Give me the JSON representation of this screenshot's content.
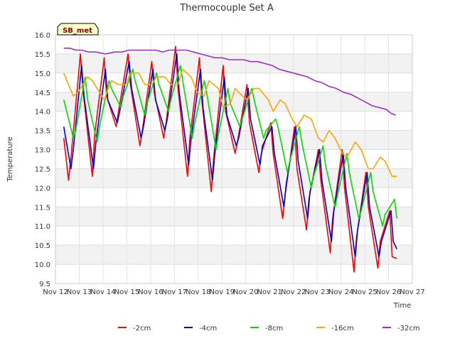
{
  "chart_data": {
    "type": "line",
    "title": "Thermocouple Set A",
    "badge": "SB_met",
    "xlabel": "Time",
    "ylabel": "Temperature",
    "ylim": [
      9.5,
      16.0
    ],
    "yticks": [
      9.5,
      10.0,
      10.5,
      11.0,
      11.5,
      12.0,
      12.5,
      13.0,
      13.5,
      14.0,
      14.5,
      15.0,
      15.5,
      16.0
    ],
    "xlim": [
      12,
      27
    ],
    "xticks": [
      {
        "v": 12,
        "label": "Nov 12"
      },
      {
        "v": 13,
        "label": "Nov 13"
      },
      {
        "v": 14,
        "label": "Nov 14"
      },
      {
        "v": 15,
        "label": "Nov 15"
      },
      {
        "v": 16,
        "label": "Nov 16"
      },
      {
        "v": 17,
        "label": "Nov 17"
      },
      {
        "v": 18,
        "label": "Nov 18"
      },
      {
        "v": 19,
        "label": "Nov 19"
      },
      {
        "v": 20,
        "label": "Nov 20"
      },
      {
        "v": 21,
        "label": "Nov 21"
      },
      {
        "v": 22,
        "label": "Nov 22"
      },
      {
        "v": 23,
        "label": "Nov 23"
      },
      {
        "v": 24,
        "label": "Nov 24"
      },
      {
        "v": 25,
        "label": "Nov 25"
      },
      {
        "v": 26,
        "label": "Nov 26"
      },
      {
        "v": 27,
        "label": "Nov 27"
      }
    ],
    "grid": true,
    "legend": "bottom",
    "series": [
      {
        "name": "-2cm",
        "color": "#ff0000",
        "x": [
          12.35,
          12.55,
          12.65,
          13.05,
          13.15,
          13.55,
          13.65,
          14.05,
          14.15,
          14.55,
          14.65,
          15.05,
          15.15,
          15.55,
          15.65,
          16.05,
          16.15,
          16.55,
          16.65,
          17.05,
          17.15,
          17.55,
          17.65,
          18.05,
          18.15,
          18.55,
          18.65,
          19.05,
          19.15,
          19.55,
          19.65,
          20.05,
          20.15,
          20.55,
          20.65,
          21.05,
          21.15,
          21.55,
          21.65,
          22.05,
          22.15,
          22.55,
          22.65,
          23.05,
          23.15,
          23.55,
          23.65,
          24.05,
          24.15,
          24.55,
          24.65,
          25.05,
          25.15,
          25.55,
          25.65,
          26.05,
          26.15,
          26.35
        ],
        "y": [
          13.3,
          12.2,
          12.8,
          15.5,
          14.6,
          12.3,
          13.4,
          15.4,
          14.4,
          13.6,
          14.0,
          15.5,
          14.7,
          13.1,
          13.5,
          15.3,
          14.5,
          13.3,
          13.7,
          15.7,
          14.6,
          12.3,
          13.3,
          15.4,
          14.3,
          11.9,
          12.8,
          15.2,
          14.0,
          12.9,
          13.2,
          14.7,
          13.7,
          12.4,
          12.9,
          13.7,
          12.9,
          11.2,
          11.8,
          13.6,
          12.5,
          10.9,
          11.7,
          13.0,
          12.2,
          10.3,
          11.2,
          13.0,
          12.0,
          9.8,
          10.7,
          12.4,
          11.5,
          9.9,
          10.6,
          11.4,
          10.2,
          10.15
        ]
      },
      {
        "name": "-4cm",
        "color": "#0000cc",
        "x": [
          12.35,
          12.65,
          12.75,
          13.1,
          13.2,
          13.6,
          13.7,
          14.1,
          14.2,
          14.6,
          14.7,
          15.1,
          15.2,
          15.6,
          15.7,
          16.1,
          16.2,
          16.6,
          16.7,
          17.1,
          17.2,
          17.6,
          17.7,
          18.1,
          18.2,
          18.6,
          18.7,
          19.1,
          19.2,
          19.6,
          19.7,
          20.1,
          20.2,
          20.6,
          20.7,
          21.1,
          21.2,
          21.6,
          21.7,
          22.1,
          22.2,
          22.6,
          22.7,
          23.1,
          23.2,
          23.6,
          23.7,
          24.1,
          24.2,
          24.6,
          24.7,
          25.1,
          25.2,
          25.6,
          25.7,
          26.1,
          26.2,
          26.35
        ],
        "y": [
          13.6,
          12.5,
          13.0,
          15.2,
          14.4,
          12.5,
          13.2,
          15.1,
          14.3,
          13.7,
          14.0,
          15.3,
          14.6,
          13.3,
          13.6,
          15.1,
          14.3,
          13.5,
          13.8,
          15.5,
          14.5,
          12.6,
          13.3,
          15.1,
          14.1,
          12.2,
          12.9,
          14.9,
          13.9,
          13.1,
          13.3,
          14.6,
          13.8,
          12.6,
          13.1,
          13.6,
          12.9,
          11.5,
          12.1,
          13.6,
          12.7,
          11.2,
          11.9,
          13.0,
          12.2,
          10.6,
          11.4,
          12.9,
          12.0,
          10.2,
          10.9,
          12.4,
          11.5,
          10.2,
          10.6,
          11.4,
          10.6,
          10.4
        ]
      },
      {
        "name": "-8cm",
        "color": "#00dd00",
        "x": [
          12.35,
          12.75,
          12.85,
          13.25,
          13.35,
          13.75,
          13.85,
          14.25,
          14.35,
          14.75,
          14.85,
          15.25,
          15.35,
          15.75,
          15.85,
          16.25,
          16.35,
          16.75,
          16.85,
          17.25,
          17.35,
          17.75,
          17.85,
          18.25,
          18.35,
          18.75,
          18.85,
          19.25,
          19.35,
          19.75,
          19.85,
          20.25,
          20.35,
          20.75,
          20.85,
          21.25,
          21.35,
          21.75,
          21.85,
          22.25,
          22.35,
          22.75,
          22.85,
          23.25,
          23.35,
          23.75,
          23.85,
          24.25,
          24.35,
          24.75,
          24.85,
          25.25,
          25.35,
          25.75,
          25.85,
          26.25,
          26.35
        ],
        "y": [
          14.3,
          13.3,
          13.5,
          14.9,
          14.3,
          13.2,
          13.6,
          14.8,
          14.6,
          14.1,
          14.4,
          15.1,
          14.8,
          13.9,
          14.2,
          15.0,
          14.7,
          14.0,
          14.3,
          15.2,
          14.8,
          13.3,
          13.7,
          14.8,
          14.5,
          13.0,
          13.4,
          14.6,
          14.2,
          13.6,
          13.8,
          14.6,
          14.3,
          13.3,
          13.5,
          13.8,
          13.6,
          12.4,
          12.7,
          13.6,
          13.2,
          12.0,
          12.3,
          13.1,
          12.6,
          11.5,
          11.8,
          12.9,
          12.4,
          11.2,
          11.4,
          12.4,
          11.9,
          11.0,
          11.3,
          11.7,
          11.2
        ]
      },
      {
        "name": "-16cm",
        "color": "#ffa500",
        "x": [
          12.35,
          12.75,
          12.95,
          13.35,
          13.55,
          13.85,
          14.05,
          14.35,
          14.65,
          14.95,
          15.15,
          15.5,
          15.75,
          16.05,
          16.25,
          16.6,
          16.85,
          17.15,
          17.35,
          17.7,
          17.95,
          18.25,
          18.45,
          18.85,
          19.05,
          19.35,
          19.55,
          19.85,
          20.05,
          20.35,
          20.55,
          20.95,
          21.15,
          21.45,
          21.65,
          21.95,
          22.15,
          22.45,
          22.75,
          23.05,
          23.25,
          23.5,
          23.75,
          24.05,
          24.25,
          24.6,
          24.85,
          25.15,
          25.35,
          25.65,
          25.85,
          26.15,
          26.35
        ],
        "y": [
          15.0,
          14.4,
          14.5,
          14.9,
          14.8,
          14.5,
          14.3,
          14.8,
          14.7,
          14.7,
          15.0,
          15.0,
          14.7,
          14.7,
          14.9,
          14.9,
          14.7,
          14.7,
          15.1,
          14.9,
          14.5,
          14.4,
          14.8,
          14.6,
          14.1,
          14.2,
          14.6,
          14.4,
          14.3,
          14.6,
          14.6,
          14.3,
          14.0,
          14.3,
          14.2,
          13.8,
          13.6,
          13.9,
          13.8,
          13.3,
          13.2,
          13.5,
          13.3,
          12.9,
          12.8,
          13.2,
          13.0,
          12.5,
          12.5,
          12.8,
          12.7,
          12.3,
          12.3
        ]
      },
      {
        "name": "-32cm",
        "color": "#9932cc",
        "x": [
          12.35,
          12.6,
          12.85,
          13.1,
          13.4,
          13.7,
          14.1,
          14.5,
          14.8,
          15.1,
          15.5,
          15.9,
          16.2,
          16.5,
          16.8,
          17.1,
          17.5,
          17.8,
          18.1,
          18.4,
          18.7,
          19.0,
          19.3,
          19.6,
          19.9,
          20.2,
          20.5,
          20.8,
          21.1,
          21.4,
          21.7,
          22.0,
          22.3,
          22.6,
          22.9,
          23.2,
          23.5,
          23.8,
          24.1,
          24.4,
          24.7,
          25.0,
          25.3,
          25.6,
          25.9,
          26.1,
          26.3
        ],
        "y": [
          15.65,
          15.65,
          15.6,
          15.6,
          15.55,
          15.55,
          15.5,
          15.55,
          15.55,
          15.6,
          15.6,
          15.6,
          15.6,
          15.55,
          15.6,
          15.6,
          15.6,
          15.55,
          15.5,
          15.45,
          15.4,
          15.4,
          15.35,
          15.35,
          15.35,
          15.3,
          15.3,
          15.25,
          15.2,
          15.1,
          15.05,
          15.0,
          14.95,
          14.9,
          14.8,
          14.75,
          14.65,
          14.6,
          14.5,
          14.45,
          14.35,
          14.25,
          14.15,
          14.1,
          14.05,
          13.95,
          13.9
        ]
      }
    ]
  }
}
